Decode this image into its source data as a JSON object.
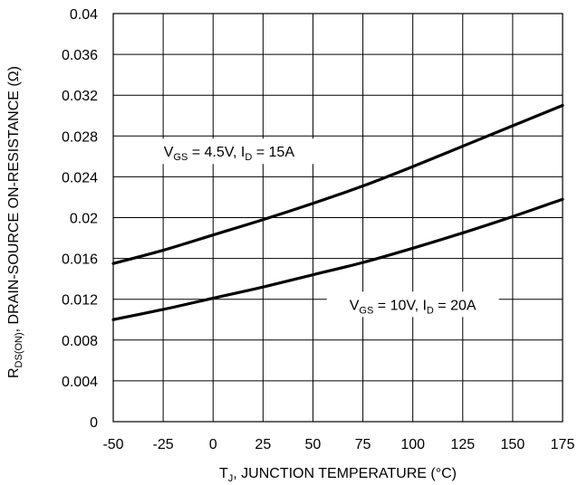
{
  "chart_data": {
    "type": "line",
    "xlabel": "T",
    "xlabel_sub": "J",
    "xlabel_rest": ", JUNCTION TEMPERATURE (°C)",
    "ylabel": "R",
    "ylabel_sub": "DS(ON)",
    "ylabel_rest": ", DRAIN-SOURCE ON-RESISTANCE (Ω)",
    "xlim": [
      -50,
      175
    ],
    "ylim": [
      0,
      0.04
    ],
    "xticks": [
      "-50",
      "-25",
      "0",
      "25",
      "50",
      "75",
      "100",
      "125",
      "150",
      "175"
    ],
    "yticks": [
      "0",
      "0.004",
      "0.008",
      "0.012",
      "0.016",
      "0.02",
      "0.024",
      "0.028",
      "0.032",
      "0.036",
      "0.04"
    ],
    "grid": true,
    "series": [
      {
        "x": [
          -50,
          -25,
          0,
          25,
          50,
          75,
          100,
          125,
          150,
          175
        ],
        "values": [
          0.0155,
          0.0168,
          0.0183,
          0.0198,
          0.0214,
          0.0231,
          0.025,
          0.027,
          0.029,
          0.031
        ]
      },
      {
        "x": [
          -50,
          -25,
          0,
          25,
          50,
          75,
          100,
          125,
          150,
          175
        ],
        "values": [
          0.01,
          0.011,
          0.0121,
          0.0132,
          0.0144,
          0.0156,
          0.017,
          0.0185,
          0.0201,
          0.0218
        ]
      }
    ],
    "annotations": [
      {
        "v": "V",
        "v_sub": "GS",
        "v_val": " = 4.5V, ",
        "i": "I",
        "i_sub": "D",
        "i_val": " = 15A",
        "at": [
          8,
          0.0265
        ]
      },
      {
        "v": "V",
        "v_sub": "GS",
        "v_val": " = 10V, ",
        "i": "I",
        "i_sub": "D",
        "i_val": " = 20A",
        "at": [
          100,
          0.0115
        ]
      }
    ],
    "colors": {
      "line": "#000000",
      "grid": "#000000",
      "background": "#ffffff"
    }
  }
}
